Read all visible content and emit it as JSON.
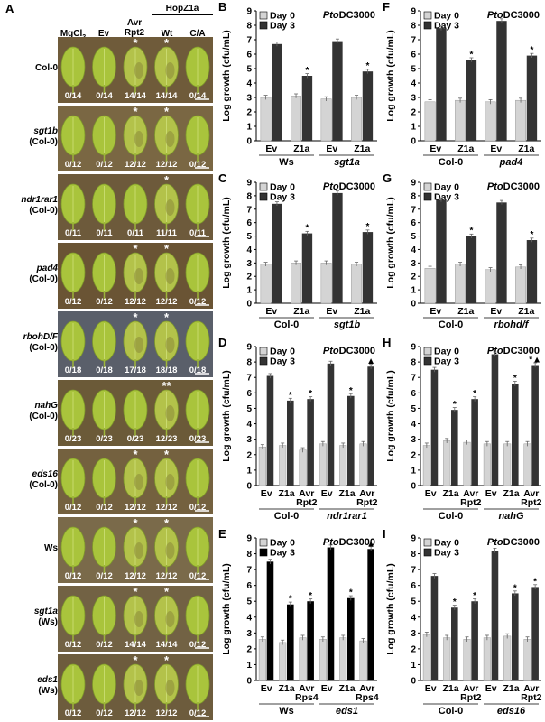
{
  "panel_a": {
    "label": "A",
    "col_headers": [
      "MgCl2",
      "Ev",
      "Avr\nRpt2",
      "Wt",
      "C/A"
    ],
    "group_header": "HopZ1a",
    "rows": [
      {
        "name": "Col-0",
        "bg": "",
        "counts": [
          "0/14",
          "0/14",
          "14/14",
          "14/14",
          "0/14"
        ],
        "stars": [
          "",
          "",
          "*",
          "*",
          ""
        ]
      },
      {
        "name": "sgt1b",
        "bg": "(Col-0)",
        "counts": [
          "0/12",
          "0/12",
          "12/12",
          "12/12",
          "0/12"
        ],
        "stars": [
          "",
          "",
          "*",
          "*",
          ""
        ]
      },
      {
        "name": "ndr1rar1",
        "bg": "(Col-0)",
        "counts": [
          "0/11",
          "0/11",
          "0/11",
          "11/11",
          "0/11"
        ],
        "stars": [
          "",
          "",
          "",
          "*",
          ""
        ]
      },
      {
        "name": "pad4",
        "bg": "(Col-0)",
        "counts": [
          "0/12",
          "0/12",
          "12/12",
          "12/12",
          "0/12"
        ],
        "stars": [
          "",
          "",
          "*",
          "*",
          ""
        ]
      },
      {
        "name": "rbohD/F",
        "bg": "(Col-0)",
        "counts": [
          "0/18",
          "0/18",
          "17/18",
          "18/18",
          "0/18"
        ],
        "stars": [
          "",
          "",
          "*",
          "*",
          ""
        ]
      },
      {
        "name": "nahG",
        "bg": "(Col-0)",
        "counts": [
          "0/23",
          "0/23",
          "0/23",
          "12/23",
          "0/23"
        ],
        "stars": [
          "",
          "",
          "",
          "**",
          ""
        ]
      },
      {
        "name": "eds16",
        "bg": "(Col-0)",
        "counts": [
          "0/12",
          "0/12",
          "12/12",
          "12/12",
          "0/12"
        ],
        "stars": [
          "",
          "",
          "*",
          "*",
          ""
        ]
      },
      {
        "name": "Ws",
        "bg": "",
        "counts": [
          "0/12",
          "0/12",
          "12/12",
          "12/12",
          "0/12"
        ],
        "stars": [
          "",
          "",
          "*",
          "*",
          ""
        ]
      },
      {
        "name": "sgt1a",
        "bg": "(Ws)",
        "counts": [
          "0/12",
          "0/12",
          "14/14",
          "14/14",
          "0/12"
        ],
        "stars": [
          "",
          "",
          "*",
          "*",
          ""
        ]
      },
      {
        "name": "eds1",
        "bg": "(Ws)",
        "counts": [
          "0/12",
          "0/12",
          "12/12",
          "12/12",
          "0/12"
        ],
        "stars": [
          "",
          "",
          "*",
          "*",
          ""
        ]
      }
    ]
  },
  "colors": {
    "day0": "#d4d4d4",
    "day3": "#333333",
    "day3_black": "#000000"
  },
  "chart_data": [
    {
      "id": "B",
      "type": "bar",
      "title": "PtoDC3000",
      "ylabel": "Log growth (cfu/mL)",
      "ylim": [
        0,
        9
      ],
      "categories": [
        "Ev",
        "Z1a",
        "Ev",
        "Z1a"
      ],
      "groups": [
        {
          "label": "Ws",
          "italic": false,
          "span": [
            0,
            1
          ]
        },
        {
          "label": "sgt1a",
          "italic": true,
          "span": [
            2,
            3
          ]
        }
      ],
      "legend": [
        "Day 0",
        "Day 3"
      ],
      "series": [
        {
          "name": "Day 0",
          "values": [
            3.0,
            3.1,
            2.9,
            3.0
          ]
        },
        {
          "name": "Day 3",
          "values": [
            6.7,
            4.5,
            6.9,
            4.8
          ]
        }
      ],
      "stars": [
        "",
        "*",
        "",
        "*"
      ]
    },
    {
      "id": "C",
      "type": "bar",
      "title": "PtoDC3000",
      "ylabel": "Log growth (cfu/mL)",
      "ylim": [
        0,
        9
      ],
      "categories": [
        "Ev",
        "Z1a",
        "Ev",
        "Z1a"
      ],
      "groups": [
        {
          "label": "Col-0",
          "italic": false,
          "span": [
            0,
            1
          ]
        },
        {
          "label": "sgt1b",
          "italic": true,
          "span": [
            2,
            3
          ]
        }
      ],
      "legend": [
        "Day 0",
        "Day 3"
      ],
      "series": [
        {
          "name": "Day 0",
          "values": [
            2.9,
            3.0,
            3.0,
            2.9
          ]
        },
        {
          "name": "Day 3",
          "values": [
            7.4,
            5.2,
            8.2,
            5.3
          ]
        }
      ],
      "stars": [
        "",
        "*",
        "",
        "*"
      ]
    },
    {
      "id": "D",
      "type": "bar",
      "title": "PtoDC3000",
      "ylabel": "Log growth (cfu/mL)",
      "ylim": [
        0,
        9
      ],
      "categories": [
        "Ev",
        "Z1a",
        "Avr\nRpt2",
        "Ev",
        "Z1a",
        "Avr\nRpt2"
      ],
      "groups": [
        {
          "label": "Col-0",
          "italic": false,
          "span": [
            0,
            2
          ]
        },
        {
          "label": "ndr1rar1",
          "italic": true,
          "span": [
            3,
            5
          ]
        }
      ],
      "legend": [
        "Day 0",
        "Day 3"
      ],
      "series": [
        {
          "name": "Day 0",
          "values": [
            2.5,
            2.6,
            2.3,
            2.7,
            2.6,
            2.7
          ]
        },
        {
          "name": "Day 3",
          "values": [
            7.1,
            5.5,
            5.6,
            7.9,
            5.8,
            7.7
          ]
        }
      ],
      "stars": [
        "",
        "*",
        "*",
        "",
        "*",
        "▲"
      ]
    },
    {
      "id": "E",
      "type": "bar",
      "title": "PtoDC3000",
      "ylabel": "Log growth (cfu/mL)",
      "ylim": [
        0,
        9
      ],
      "categories": [
        "Ev",
        "Z1a",
        "Avr\nRps4",
        "Ev",
        "Z1a",
        "Avr\nRps4"
      ],
      "groups": [
        {
          "label": "Ws",
          "italic": false,
          "span": [
            0,
            2
          ]
        },
        {
          "label": "eds1",
          "italic": true,
          "span": [
            3,
            5
          ]
        }
      ],
      "legend": [
        "Day 0",
        "Day 3"
      ],
      "black": true,
      "series": [
        {
          "name": "Day 0",
          "values": [
            2.6,
            2.4,
            2.7,
            2.6,
            2.7,
            2.5
          ]
        },
        {
          "name": "Day 3",
          "values": [
            7.5,
            4.8,
            5.0,
            8.4,
            5.2,
            8.3
          ]
        }
      ],
      "stars": [
        "",
        "*",
        "*",
        "",
        "*",
        "▲"
      ]
    },
    {
      "id": "F",
      "type": "bar",
      "title": "PtoDC3000",
      "ylabel": "Log growth (cfu/mL)",
      "ylim": [
        0,
        9
      ],
      "categories": [
        "Ev",
        "Z1a",
        "Ev",
        "Z1a"
      ],
      "groups": [
        {
          "label": "Col-0",
          "italic": false,
          "span": [
            0,
            1
          ]
        },
        {
          "label": "pad4",
          "italic": true,
          "span": [
            2,
            3
          ]
        }
      ],
      "legend": [
        "Day 0",
        "Day 3"
      ],
      "series": [
        {
          "name": "Day 0",
          "values": [
            2.7,
            2.8,
            2.7,
            2.8
          ]
        },
        {
          "name": "Day 3",
          "values": [
            7.8,
            5.6,
            8.3,
            5.9
          ]
        }
      ],
      "stars": [
        "",
        "*",
        "",
        "*"
      ]
    },
    {
      "id": "G",
      "type": "bar",
      "title": "PtoDC3000",
      "ylabel": "Log growth (cfu/mL)",
      "ylim": [
        0,
        9
      ],
      "categories": [
        "Ev",
        "Z1a",
        "Ev",
        "Z1a"
      ],
      "groups": [
        {
          "label": "Col-0",
          "italic": false,
          "span": [
            0,
            1
          ]
        },
        {
          "label": "rbohd/f",
          "italic": true,
          "span": [
            2,
            3
          ]
        }
      ],
      "legend": [
        "Day 0",
        "Day 3"
      ],
      "series": [
        {
          "name": "Day 0",
          "values": [
            2.6,
            2.9,
            2.5,
            2.7
          ]
        },
        {
          "name": "Day 3",
          "values": [
            7.7,
            5.0,
            7.5,
            4.7
          ]
        }
      ],
      "stars": [
        "",
        "*",
        "",
        "*"
      ]
    },
    {
      "id": "H",
      "type": "bar",
      "title": "PtoDC3000",
      "ylabel": "Log growth (cfu/mL)",
      "ylim": [
        0,
        9
      ],
      "categories": [
        "Ev",
        "Z1a",
        "Avr\nRpt2",
        "Ev",
        "Z1a",
        "Avr\nRpt2"
      ],
      "groups": [
        {
          "label": "Col-0",
          "italic": false,
          "span": [
            0,
            2
          ]
        },
        {
          "label": "nahG",
          "italic": true,
          "span": [
            3,
            5
          ]
        }
      ],
      "legend": [
        "Day 0",
        "Day 3"
      ],
      "series": [
        {
          "name": "Day 0",
          "values": [
            2.6,
            2.9,
            2.8,
            2.7,
            2.7,
            2.7
          ]
        },
        {
          "name": "Day 3",
          "values": [
            7.5,
            4.9,
            5.6,
            8.5,
            6.6,
            7.8
          ]
        }
      ],
      "stars": [
        "",
        "*",
        "*",
        "",
        "*",
        "*▲"
      ]
    },
    {
      "id": "I",
      "type": "bar",
      "title": "PtoDC3000",
      "ylabel": "Log growth (cfu/mL)",
      "ylim": [
        0,
        9
      ],
      "categories": [
        "Ev",
        "Z1a",
        "Avr\nRpt2",
        "Ev",
        "Z1a",
        "Avr\nRpt2"
      ],
      "groups": [
        {
          "label": "Col-0",
          "italic": false,
          "span": [
            0,
            2
          ]
        },
        {
          "label": "eds16",
          "italic": true,
          "span": [
            3,
            5
          ]
        }
      ],
      "legend": [
        "Day 0",
        "Day 3"
      ],
      "series": [
        {
          "name": "Day 0",
          "values": [
            2.9,
            2.7,
            2.6,
            2.7,
            2.8,
            2.6
          ]
        },
        {
          "name": "Day 3",
          "values": [
            6.6,
            4.6,
            5.0,
            8.2,
            5.5,
            5.9
          ]
        }
      ],
      "stars": [
        "",
        "*",
        "*",
        "",
        "*",
        "*"
      ]
    }
  ]
}
